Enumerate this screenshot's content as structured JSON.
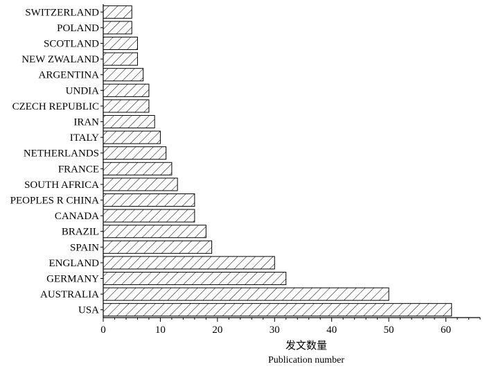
{
  "chart_data": {
    "type": "bar",
    "orientation": "horizontal",
    "categories": [
      "USA",
      "AUSTRALIA",
      "GERMANY",
      "ENGLAND",
      "SPAIN",
      "BRAZIL",
      "CANADA",
      "PEOPLES R CHINA",
      "SOUTH AFRICA",
      "FRANCE",
      "NETHERLANDS",
      "ITALY",
      "IRAN",
      "CZECH REPUBLIC",
      "UNDIA",
      "ARGENTINA",
      "NEW ZWALAND",
      "SCOTLAND",
      "POLAND",
      "SWITZERLAND"
    ],
    "values": [
      61,
      50,
      32,
      30,
      19,
      18,
      16,
      16,
      13,
      12,
      11,
      10,
      9,
      8,
      8,
      7,
      6,
      6,
      5,
      5
    ],
    "xlim": [
      0,
      66
    ],
    "xticks": [
      0,
      10,
      20,
      30,
      40,
      50,
      60
    ],
    "xlabel": "发文数量",
    "xlabel_en": "Publication number",
    "bar_fill": "diagonal-hatch",
    "grid": false,
    "colors": {
      "bar_stroke": "#000000",
      "hatch": "#000000",
      "background": "#ffffff"
    }
  }
}
